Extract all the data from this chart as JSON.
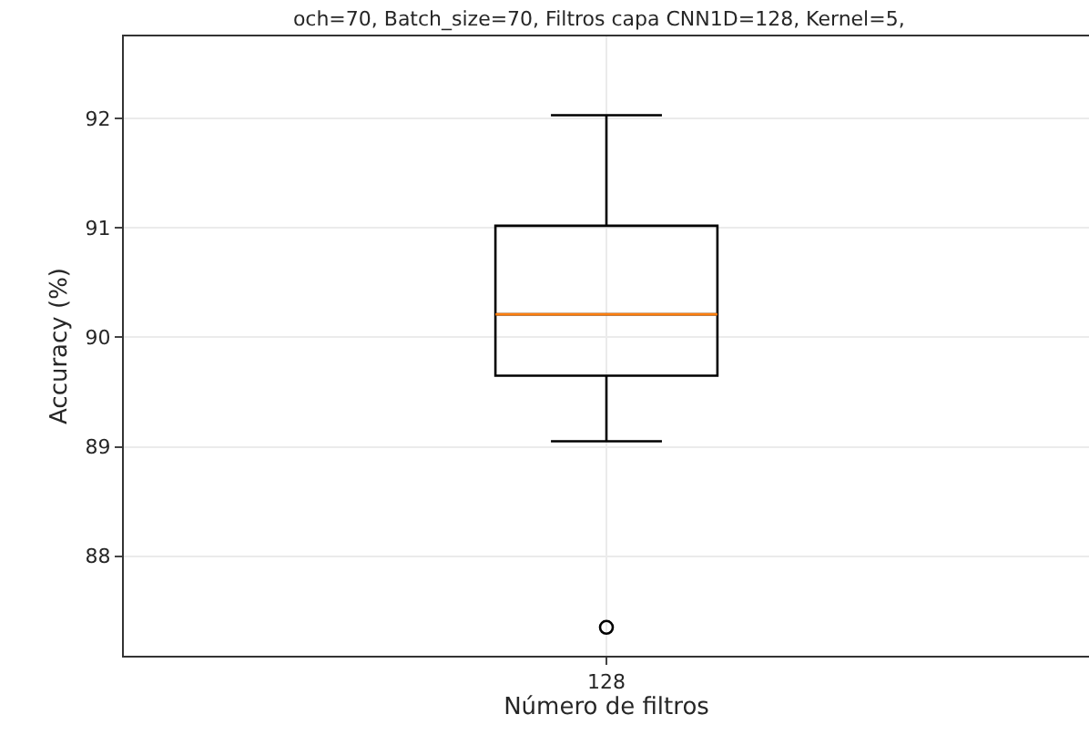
{
  "chart_data": {
    "type": "box",
    "title": "och=70, Batch_size=70, Filtros capa CNN1D=128, Kernel=5,",
    "xlabel": "Número de filtros",
    "ylabel": "Accuracy (%)",
    "categories": [
      "128"
    ],
    "boxes": [
      {
        "low": 89.05,
        "q1": 89.65,
        "median": 90.21,
        "q3": 91.02,
        "high": 92.03,
        "outliers": [
          87.35
        ]
      }
    ],
    "color": "#000000",
    "ylim": [
      87.09,
      92.75
    ],
    "yticks": [
      88,
      89,
      90,
      91,
      92
    ],
    "grid": true
  }
}
